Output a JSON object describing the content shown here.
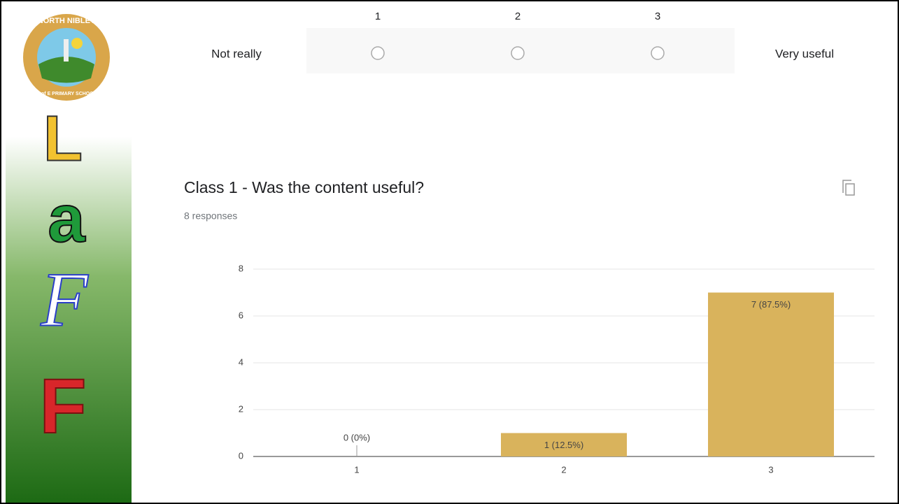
{
  "sidebar": {
    "logo_top": "NORTH NIBLEY",
    "logo_bottom": "C of E PRIMARY SCHOOL",
    "letters": [
      "L",
      "a",
      "F",
      "F"
    ]
  },
  "scale": {
    "numbers": [
      "1",
      "2",
      "3"
    ],
    "low_label": "Not really",
    "high_label": "Very useful"
  },
  "chart_data": {
    "type": "bar",
    "title": "Class 1 - Was the content useful?",
    "subtitle": "8 responses",
    "categories": [
      "1",
      "2",
      "3"
    ],
    "values": [
      0,
      1,
      7
    ],
    "value_labels": [
      "0 (0%)",
      "1 (12.5%)",
      "7 (87.5%)"
    ],
    "color": "#d9b35c",
    "ylim": [
      0,
      8
    ],
    "yticks": [
      0,
      2,
      4,
      6,
      8
    ],
    "grid": true
  }
}
